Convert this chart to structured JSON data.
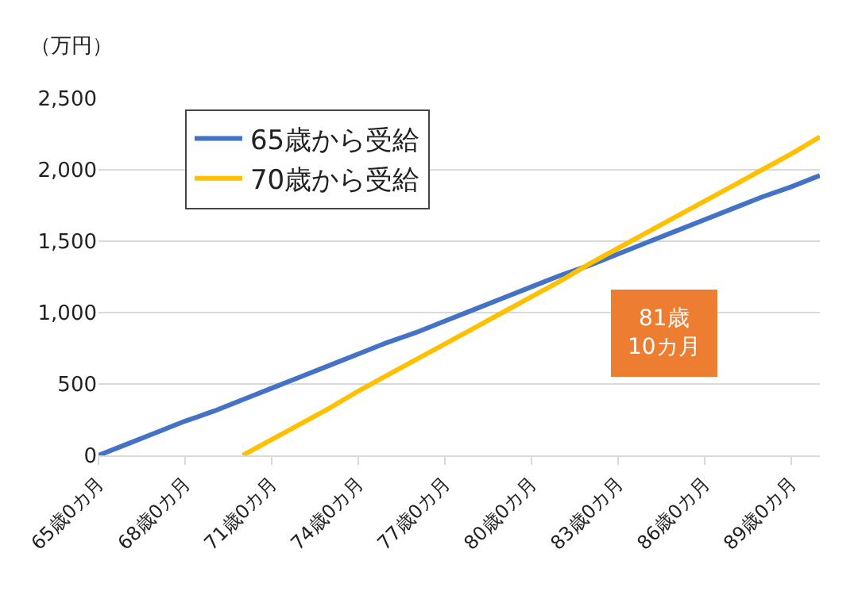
{
  "chart_data": {
    "type": "line",
    "ylabel": "（万円）",
    "categories": [
      "65歳0カ月",
      null,
      null,
      "68歳0カ月",
      null,
      null,
      "71歳0カ月",
      null,
      null,
      "74歳0カ月",
      null,
      null,
      "77歳0カ月",
      null,
      null,
      "80歳0カ月",
      null,
      null,
      "83歳0カ月",
      null,
      null,
      "86歳0カ月",
      null,
      null,
      "89歳0カ月",
      null
    ],
    "series": [
      {
        "name": "65歳から受給",
        "color": "#4472c4",
        "values": [
          0,
          80,
          160,
          240,
          310,
          390,
          470,
          550,
          630,
          710,
          790,
          860,
          940,
          1020,
          1100,
          1180,
          1260,
          1330,
          1410,
          1490,
          1570,
          1650,
          1730,
          1810,
          1880,
          1960
        ]
      },
      {
        "name": "70歳から受給",
        "color": "#ffc000",
        "values": [
          null,
          null,
          null,
          null,
          null,
          0,
          110,
          220,
          330,
          450,
          560,
          670,
          780,
          890,
          1000,
          1110,
          1220,
          1340,
          1450,
          1560,
          1670,
          1780,
          1890,
          2000,
          2110,
          2230
        ]
      }
    ],
    "ylim": [
      0,
      2500
    ],
    "yticks": [
      {
        "value": 0,
        "label": "0"
      },
      {
        "value": 500,
        "label": "500"
      },
      {
        "value": 1000,
        "label": "1,000"
      },
      {
        "value": 1500,
        "label": "1,500"
      },
      {
        "value": 2000,
        "label": "2,000"
      },
      {
        "value": 2500,
        "label": "2,500"
      }
    ],
    "annotations": [
      "81歳\n10カ月"
    ],
    "grid": "y",
    "legend": "top left",
    "marker": "none",
    "line_style": "solid"
  }
}
